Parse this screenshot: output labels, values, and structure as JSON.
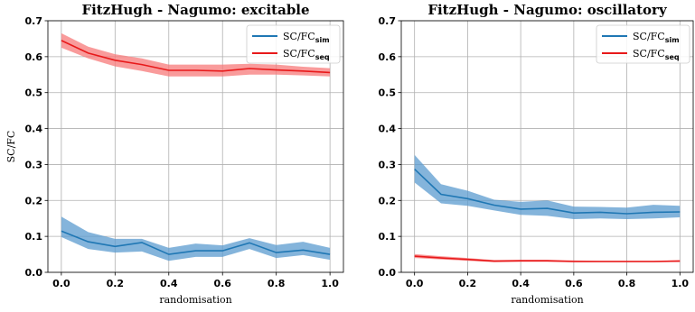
{
  "chart_data": [
    {
      "type": "line",
      "title": "FitzHugh - Nagumo: excitable",
      "xlabel": "randomisation",
      "ylabel": "SC/FC",
      "xlim": [
        0.0,
        1.0
      ],
      "ylim": [
        0.0,
        0.7
      ],
      "xticks": [
        "0.0",
        "0.2",
        "0.4",
        "0.6",
        "0.8",
        "1.0"
      ],
      "yticks": [
        "0.0",
        "0.1",
        "0.2",
        "0.3",
        "0.4",
        "0.5",
        "0.6",
        "0.7"
      ],
      "grid": true,
      "legend_position": "top-right",
      "x": [
        0.0,
        0.1,
        0.2,
        0.3,
        0.4,
        0.5,
        0.6,
        0.7,
        0.8,
        0.9,
        1.0
      ],
      "series": [
        {
          "name": "SC/FC",
          "name_sub": "sim",
          "color": "#1f77b4",
          "band_color": "#5b9bcf",
          "values": [
            0.115,
            0.085,
            0.072,
            0.083,
            0.05,
            0.06,
            0.06,
            0.082,
            0.055,
            0.062,
            0.05
          ],
          "lower": [
            0.098,
            0.065,
            0.055,
            0.058,
            0.032,
            0.043,
            0.043,
            0.065,
            0.04,
            0.048,
            0.035
          ],
          "upper": [
            0.155,
            0.112,
            0.093,
            0.093,
            0.068,
            0.08,
            0.075,
            0.095,
            0.076,
            0.085,
            0.068
          ]
        },
        {
          "name": "SC/FC",
          "name_sub": "seq",
          "color": "#e8191a",
          "band_color": "#f77a7a",
          "values": [
            0.645,
            0.61,
            0.59,
            0.578,
            0.562,
            0.562,
            0.56,
            0.567,
            0.563,
            0.56,
            0.556
          ],
          "lower": [
            0.625,
            0.595,
            0.573,
            0.56,
            0.545,
            0.545,
            0.545,
            0.55,
            0.55,
            0.548,
            0.545
          ],
          "upper": [
            0.665,
            0.628,
            0.607,
            0.595,
            0.578,
            0.578,
            0.578,
            0.58,
            0.578,
            0.572,
            0.568
          ]
        }
      ]
    },
    {
      "type": "line",
      "title": "FitzHugh - Nagumo: oscillatory",
      "xlabel": "randomisation",
      "ylabel": "",
      "xlim": [
        0.0,
        1.0
      ],
      "ylim": [
        0.0,
        0.7
      ],
      "xticks": [
        "0.0",
        "0.2",
        "0.4",
        "0.6",
        "0.8",
        "1.0"
      ],
      "yticks": [
        "0.0",
        "0.1",
        "0.2",
        "0.3",
        "0.4",
        "0.5",
        "0.6",
        "0.7"
      ],
      "grid": true,
      "legend_position": "top-right",
      "x": [
        0.0,
        0.1,
        0.2,
        0.3,
        0.4,
        0.5,
        0.6,
        0.7,
        0.8,
        0.9,
        1.0
      ],
      "series": [
        {
          "name": "SC/FC",
          "name_sub": "sim",
          "color": "#1f77b4",
          "band_color": "#5b9bcf",
          "values": [
            0.287,
            0.217,
            0.205,
            0.187,
            0.176,
            0.178,
            0.165,
            0.167,
            0.163,
            0.167,
            0.168
          ],
          "lower": [
            0.25,
            0.192,
            0.185,
            0.172,
            0.16,
            0.157,
            0.148,
            0.15,
            0.148,
            0.15,
            0.153
          ],
          "upper": [
            0.327,
            0.245,
            0.227,
            0.202,
            0.196,
            0.2,
            0.183,
            0.182,
            0.18,
            0.188,
            0.185
          ]
        },
        {
          "name": "SC/FC",
          "name_sub": "seq",
          "color": "#e8191a",
          "band_color": "#f77a7a",
          "values": [
            0.045,
            0.04,
            0.036,
            0.031,
            0.032,
            0.032,
            0.03,
            0.03,
            0.03,
            0.03,
            0.031
          ],
          "lower": [
            0.04,
            0.036,
            0.032,
            0.028,
            0.029,
            0.029,
            0.028,
            0.028,
            0.028,
            0.028,
            0.029
          ],
          "upper": [
            0.051,
            0.045,
            0.04,
            0.034,
            0.035,
            0.035,
            0.033,
            0.032,
            0.032,
            0.032,
            0.034
          ]
        }
      ]
    }
  ]
}
